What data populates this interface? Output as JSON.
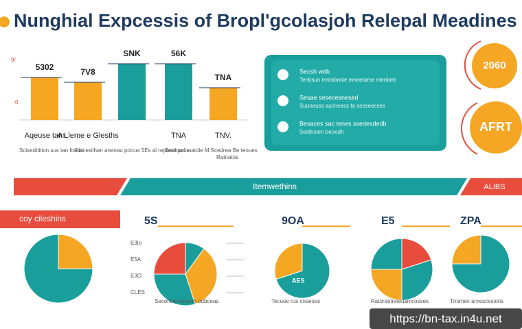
{
  "header": {
    "title": "Nunghial Expcessis of Bropl'gcolasjoh Relepal Meadines"
  },
  "chart_data": [
    {
      "type": "bar",
      "categories": [
        "Aqeuse tam",
        "A Lleme e Glesths",
        null,
        "TNA",
        "TNV."
      ],
      "values": [
        62,
        55,
        82,
        82,
        47
      ],
      "colors": [
        "#f5a623",
        "#f5a623",
        "#1a9e9b",
        "#1a9e9b",
        "#f5a623"
      ],
      "annotations": [
        "5302",
        "7V8",
        "SNK",
        "56K",
        "TNA"
      ],
      "axis_labels": [
        "9/",
        "0"
      ],
      "captions": [
        "Scisedttition sus tan foeus",
        "Gbicesilhan anenau pcicus 5Es al reposel pcua",
        "Becouaf matdie M Scedrea Be teoues",
        "Ratnatos"
      ]
    },
    {
      "type": "pie",
      "title": "coy cileshins",
      "values": [
        25,
        75
      ],
      "colors": [
        "#f5a623",
        "#1a9e9b"
      ]
    },
    {
      "type": "pie",
      "title": "5S",
      "values": [
        10,
        35,
        30,
        25
      ],
      "colors": [
        "#1a9e9b",
        "#f5a623",
        "#1a9e9b",
        "#e84c3d"
      ],
      "side_labels": [
        "E3lo",
        "E5A",
        "E3O",
        "CLES"
      ],
      "caption": "Seconcecseeson oubceas"
    },
    {
      "type": "pie",
      "title": "9OA",
      "values": [
        70,
        30
      ],
      "colors": [
        "#1a9e9b",
        "#f5a623"
      ],
      "caption": "Tecuoe rus cnaeses",
      "inner_label": "AES"
    },
    {
      "type": "pie",
      "title": "E5",
      "values": [
        20,
        30,
        25,
        25
      ],
      "colors": [
        "#e84c3d",
        "#1a9e9b",
        "#f5a623",
        "#1a9e9b"
      ],
      "caption": "Ratoreetneeuanicosses"
    },
    {
      "type": "pie",
      "title": "ZPA",
      "values": [
        75,
        25
      ],
      "colors": [
        "#1a9e9b",
        "#f5a623"
      ],
      "caption": "Tnomec anrescesions"
    }
  ],
  "panel": {
    "rows": [
      {
        "title": "Secsh wdb",
        "text": "Tenbsun mntobnsle mneetarse ntenbeb"
      },
      {
        "title": "Sesae sesecesnesed",
        "text": "Suuneuss aucheess fa sesseecses"
      },
      {
        "title": "Besaces sac tenes ssedesdedh",
        "text": "Sesthsem beoodh"
      }
    ]
  },
  "badges": [
    "2060",
    "AFRT"
  ],
  "banner": {
    "center": "Itemwethins",
    "right": "ALIBS"
  },
  "watermark": "https://bn-tax.in4u.net"
}
